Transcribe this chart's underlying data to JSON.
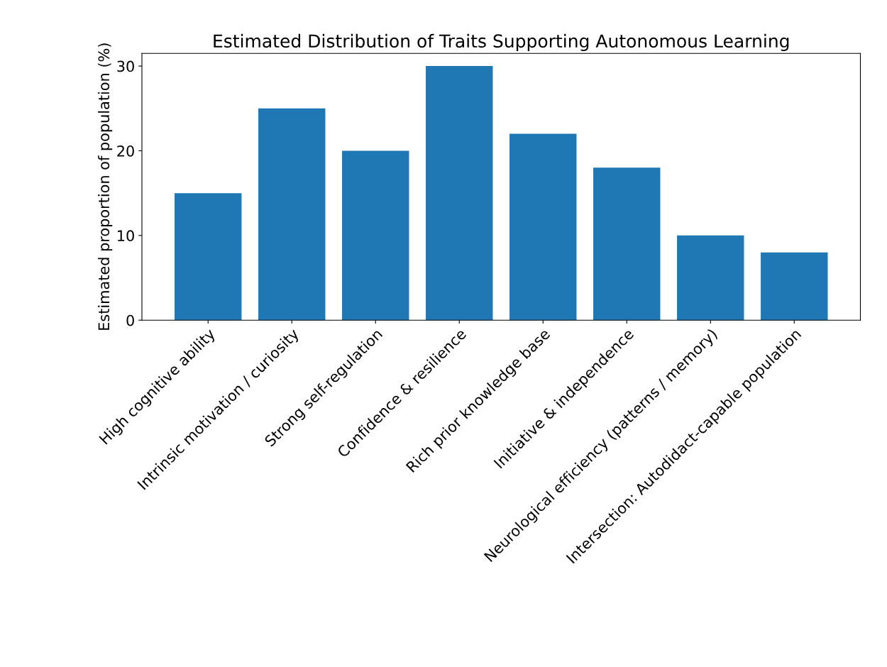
{
  "chart_data": {
    "type": "bar",
    "title": "Estimated Distribution of Traits Supporting Autonomous Learning",
    "ylabel": "Estimated proportion of population (%)",
    "categories": [
      "High cognitive ability",
      "Intrinsic motivation / curiosity",
      "Strong self-regulation",
      "Confidence & resilience",
      "Rich prior knowledge base",
      "Initiative & independence",
      "Neurological efficiency (patterns / memory)",
      "Intersection: Autodidact-capable population"
    ],
    "values": [
      15,
      25,
      20,
      30,
      22,
      18,
      10,
      8
    ],
    "color": "#1f77b4",
    "ylim": [
      0,
      31.5
    ],
    "yticks": [
      0,
      10,
      20,
      30
    ],
    "grid": false
  }
}
